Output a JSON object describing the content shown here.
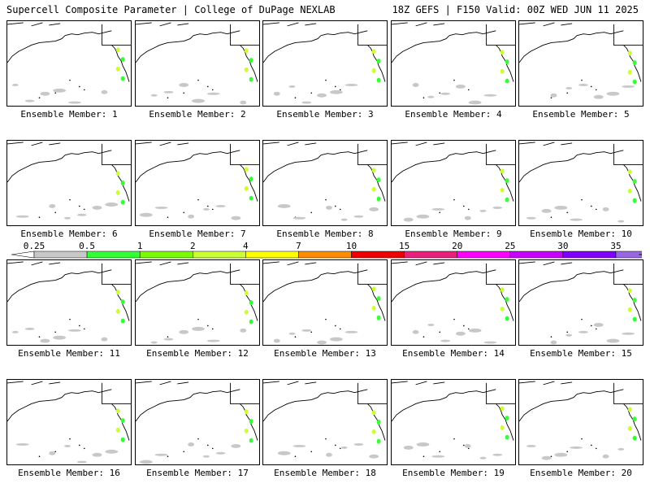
{
  "header": {
    "left": "Supercell Composite Parameter | College of DuPage NEXLAB",
    "right": "18Z GEFS | F150 Valid: 00Z WED JUN 11 2025"
  },
  "caption_prefix": "Ensemble Member:",
  "members": [
    1,
    2,
    3,
    4,
    5,
    6,
    7,
    8,
    9,
    10,
    11,
    12,
    13,
    14,
    15,
    16,
    17,
    18,
    19,
    20
  ],
  "colorbar": {
    "labels": [
      "0.25",
      "0.5",
      "1",
      "2",
      "4",
      "7",
      "10",
      "15",
      "20",
      "25",
      "30",
      "35"
    ],
    "colors": [
      "#c8c8c8",
      "#34ff34",
      "#7cfc00",
      "#ccff33",
      "#ffff00",
      "#ff8c00",
      "#ee0000",
      "#e8207a",
      "#ff00ff",
      "#c800ff",
      "#7f00ff",
      "#9966e6",
      "#33e6f0"
    ]
  }
}
